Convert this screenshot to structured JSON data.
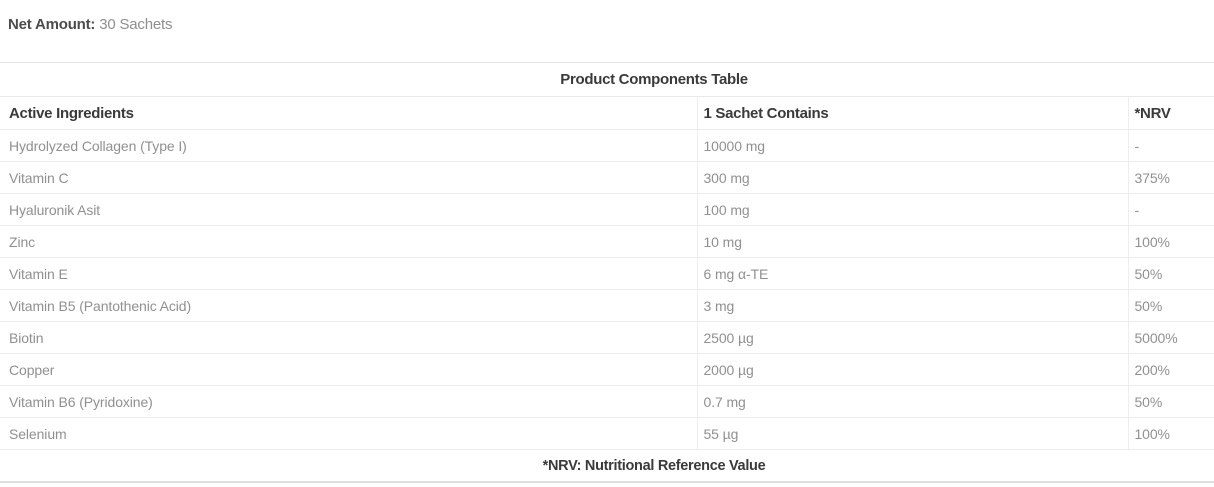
{
  "net_amount": {
    "label": "Net Amount:",
    "value": "30 Sachets"
  },
  "table": {
    "title": "Product Components Table",
    "columns": [
      "Active Ingredients",
      "1 Sachet Contains",
      "*NRV"
    ],
    "rows": [
      {
        "ingredient": "Hydrolyzed Collagen (Type I)",
        "amount": "10000 mg",
        "nrv": "-"
      },
      {
        "ingredient": "Vitamin C",
        "amount": "300 mg",
        "nrv": "375%"
      },
      {
        "ingredient": "Hyaluronik Asit",
        "amount": "100 mg",
        "nrv": "-"
      },
      {
        "ingredient": "Zinc",
        "amount": "10 mg",
        "nrv": "100%"
      },
      {
        "ingredient": "Vitamin E",
        "amount": "6 mg α-TE",
        "nrv": "50%"
      },
      {
        "ingredient": "Vitamin B5 (Pantothenic Acid)",
        "amount": "3 mg",
        "nrv": "50%"
      },
      {
        "ingredient": "Biotin",
        "amount": "2500 µg",
        "nrv": "5000%"
      },
      {
        "ingredient": "Copper",
        "amount": "2000 µg",
        "nrv": "200%"
      },
      {
        "ingredient": "Vitamin B6 (Pyridoxine)",
        "amount": "0.7 mg",
        "nrv": "50%"
      },
      {
        "ingredient": "Selenium",
        "amount": "55 µg",
        "nrv": "100%"
      }
    ],
    "footnote": "*NRV: Nutritional Reference Value"
  },
  "colors": {
    "heading_text": "#3a3a3a",
    "body_text": "#909090",
    "border": "#e9e9e9",
    "background": "#ffffff"
  }
}
